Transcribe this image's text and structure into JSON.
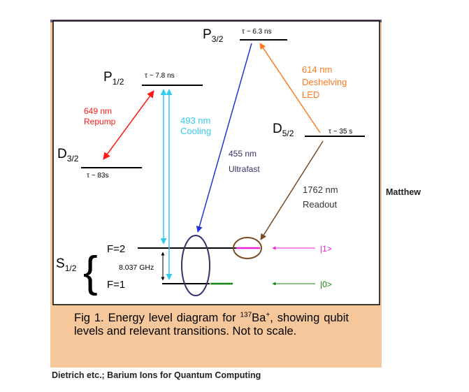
{
  "levels": {
    "p32": {
      "main": "P",
      "sub": "3/2",
      "lifetime": "τ ~ 6.3 ns"
    },
    "p12": {
      "main": "P",
      "sub": "1/2",
      "lifetime": "τ ~ 7.8 ns"
    },
    "d52": {
      "main": "D",
      "sub": "5/2",
      "lifetime": "τ ~ 35 s"
    },
    "d32": {
      "main": "D",
      "sub": "3/2",
      "lifetime": "τ ~ 83s"
    },
    "s12": {
      "main": "S",
      "sub": "1/2",
      "f2": "F=2",
      "f1": "F=1",
      "splitting": "8.037 GHz"
    }
  },
  "transitions": {
    "repump": {
      "line1": "649 nm",
      "line2": "Repump",
      "color": "#ff1a1a"
    },
    "cooling": {
      "line1": "493 nm",
      "line2": "Cooling",
      "color": "#33ccee"
    },
    "ultrafast": {
      "line1": "455 nm",
      "line2": "Ultrafast",
      "color": "#2233dd"
    },
    "deshelving": {
      "line1": "614 nm",
      "line2": "Deshelving",
      "line3": "LED",
      "color": "#ff7a22"
    },
    "readout": {
      "line1": "1762 nm",
      "line2": "Readout",
      "color": "#7a4a22"
    }
  },
  "qubits": {
    "one": "|1>",
    "zero": "|0>",
    "one_color": "#ee22dd",
    "zero_color": "#118811"
  },
  "caption": {
    "prefix": "Fig  1.    Energy  level  diagram  for  ",
    "isotope": "137",
    "species": "Ba",
    "charge": "+",
    "rest": ", showing qubit levels and relevant transitions. Not to scale."
  },
  "side_note": "Matthew",
  "credit": "Dietrich etc.; Barium Ions for Quantum Computing",
  "colors": {
    "frame": "#f5c79b",
    "frame_top": "#7a5a8a",
    "diagram_bg": "#ffffff"
  }
}
